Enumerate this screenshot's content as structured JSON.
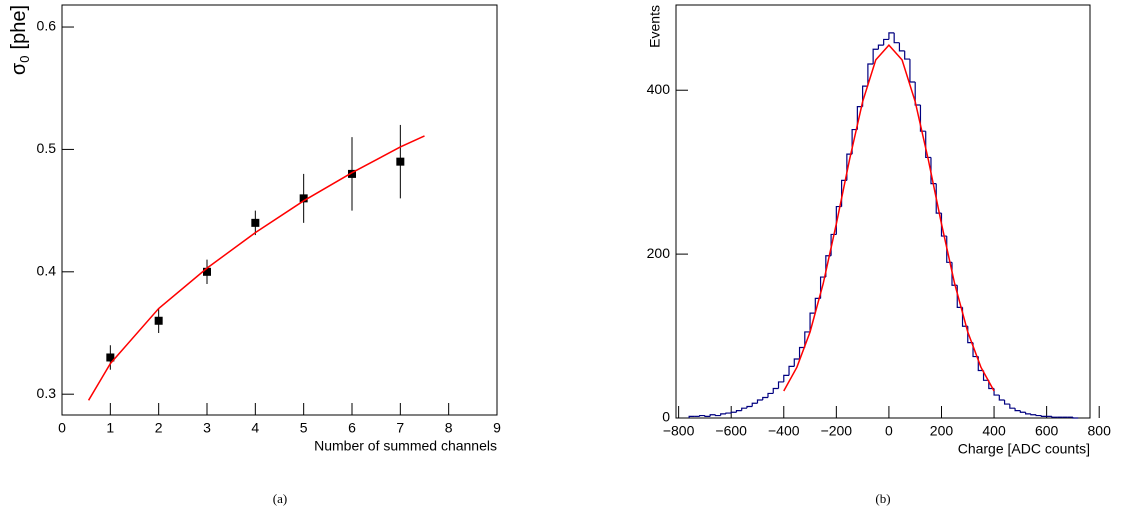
{
  "chart_data": [
    {
      "type": "scatter",
      "ylabel": [
        "σ",
        "0",
        "[phe]"
      ],
      "xlabel": "Number of summed channels",
      "caption": "(a)",
      "x": [
        1,
        2,
        3,
        4,
        5,
        6,
        7
      ],
      "values": [
        0.33,
        0.36,
        0.4,
        0.44,
        0.46,
        0.48,
        0.49
      ],
      "errors": [
        0.01,
        0.01,
        0.01,
        0.01,
        0.02,
        0.03,
        0.03
      ],
      "color": "#000000",
      "fit": {
        "x": [
          0.55,
          1,
          2,
          3,
          4,
          5,
          6,
          7,
          7.5
        ],
        "values": [
          0.295,
          0.325,
          0.37,
          0.403,
          0.432,
          0.458,
          0.481,
          0.502,
          0.511
        ],
        "color": "#ff0000"
      },
      "xlim": [
        0,
        9
      ],
      "xticks": [
        0,
        1,
        2,
        3,
        4,
        5,
        6,
        7,
        8,
        9
      ],
      "ylim": [
        0.283,
        0.618
      ],
      "yticks": [
        0.3,
        0.4,
        0.5,
        0.6
      ]
    },
    {
      "type": "histogram",
      "ylabel": "Events",
      "xlabel": "Charge [ADC counts]",
      "caption": "(b)",
      "bins": [
        -760,
        -740,
        -720,
        -700,
        -680,
        -660,
        -640,
        -620,
        -600,
        -580,
        -560,
        -540,
        -520,
        -500,
        -480,
        -460,
        -440,
        -420,
        -400,
        -380,
        -360,
        -340,
        -320,
        -300,
        -280,
        -260,
        -240,
        -220,
        -200,
        -180,
        -160,
        -140,
        -120,
        -100,
        -80,
        -60,
        -40,
        -20,
        0,
        20,
        40,
        60,
        80,
        100,
        120,
        140,
        160,
        180,
        200,
        220,
        240,
        260,
        280,
        300,
        320,
        340,
        360,
        380,
        400,
        420,
        440,
        460,
        480,
        500,
        520,
        540,
        560,
        580,
        600,
        620,
        640,
        660,
        680,
        700,
        720
      ],
      "values": [
        2,
        2,
        3,
        2,
        4,
        3,
        5,
        6,
        7,
        9,
        12,
        14,
        18,
        22,
        25,
        30,
        36,
        44,
        52,
        63,
        72,
        86,
        105,
        128,
        146,
        172,
        198,
        224,
        258,
        290,
        322,
        352,
        380,
        405,
        432,
        450,
        455,
        462,
        470,
        458,
        448,
        438,
        410,
        382,
        350,
        318,
        286,
        250,
        222,
        190,
        162,
        135,
        112,
        92,
        75,
        58,
        46,
        36,
        28,
        22,
        17,
        12,
        9,
        7,
        5,
        4,
        3,
        2,
        2,
        1,
        1,
        1,
        1,
        0
      ],
      "color": "#000080",
      "fit": {
        "x": [
          -400,
          -350,
          -300,
          -250,
          -200,
          -150,
          -100,
          -50,
          0,
          50,
          100,
          150,
          200,
          250,
          300,
          350,
          400
        ],
        "values": [
          33,
          62,
          105,
          164,
          237,
          315,
          386,
          437,
          455,
          437,
          386,
          315,
          237,
          164,
          105,
          62,
          33
        ],
        "color": "#ff0000"
      },
      "xlim": [
        -810,
        765
      ],
      "xticks": [
        {
          "value": -800,
          "label": "−800"
        },
        {
          "value": -600,
          "label": "−600"
        },
        {
          "value": -400,
          "label": "−400"
        },
        {
          "value": -200,
          "label": "−200"
        },
        0,
        200,
        400,
        600,
        800
      ],
      "ylim": [
        0,
        504
      ],
      "yticks": [
        0,
        200,
        400
      ]
    }
  ]
}
